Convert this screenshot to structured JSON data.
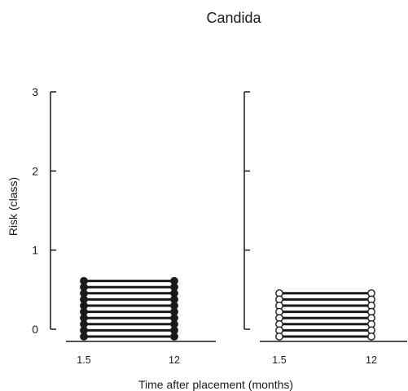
{
  "chart_data": {
    "type": "line",
    "title": "Candida",
    "xlabel": "Time after placement (months)",
    "ylabel": "Risk (class)",
    "ylim": [
      0,
      3
    ],
    "y_ticks": [
      "0",
      "1",
      "2",
      "3"
    ],
    "x_ticks": [
      "1.5",
      "12"
    ],
    "panels": [
      {
        "marker": "filled",
        "marker_color": "#1a1a1a",
        "series": [
          {
            "x": [
              "1.5",
              "12"
            ],
            "y": [
              0,
              0
            ]
          },
          {
            "x": [
              "1.5",
              "12"
            ],
            "y": [
              0,
              0
            ]
          },
          {
            "x": [
              "1.5",
              "12"
            ],
            "y": [
              0,
              0
            ]
          },
          {
            "x": [
              "1.5",
              "12"
            ],
            "y": [
              0,
              0
            ]
          },
          {
            "x": [
              "1.5",
              "12"
            ],
            "y": [
              0,
              0
            ]
          },
          {
            "x": [
              "1.5",
              "12"
            ],
            "y": [
              0,
              0
            ]
          },
          {
            "x": [
              "1.5",
              "12"
            ],
            "y": [
              0,
              0
            ]
          },
          {
            "x": [
              "1.5",
              "12"
            ],
            "y": [
              0,
              0
            ]
          },
          {
            "x": [
              "1.5",
              "12"
            ],
            "y": [
              0,
              0
            ]
          },
          {
            "x": [
              "1.5",
              "12"
            ],
            "y": [
              0,
              0
            ]
          }
        ]
      },
      {
        "marker": "open",
        "marker_color": "#ffffff",
        "series": [
          {
            "x": [
              "1.5",
              "12"
            ],
            "y": [
              0,
              0
            ]
          },
          {
            "x": [
              "1.5",
              "12"
            ],
            "y": [
              0,
              0
            ]
          },
          {
            "x": [
              "1.5",
              "12"
            ],
            "y": [
              0,
              0
            ]
          },
          {
            "x": [
              "1.5",
              "12"
            ],
            "y": [
              0,
              0
            ]
          },
          {
            "x": [
              "1.5",
              "12"
            ],
            "y": [
              0,
              0
            ]
          },
          {
            "x": [
              "1.5",
              "12"
            ],
            "y": [
              0,
              0
            ]
          },
          {
            "x": [
              "1.5",
              "12"
            ],
            "y": [
              0,
              0
            ]
          },
          {
            "x": [
              "1.5",
              "12"
            ],
            "y": [
              0,
              0
            ]
          }
        ]
      }
    ],
    "grid": false,
    "legend": "none"
  }
}
